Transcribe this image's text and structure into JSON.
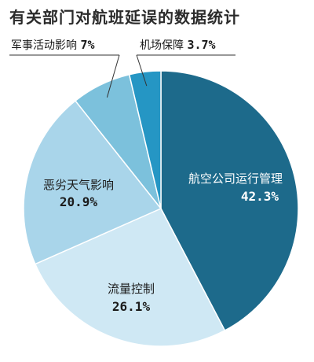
{
  "chart_data": {
    "type": "pie",
    "title": "有关部门对航班延误的数据统计",
    "slices": [
      {
        "label": "航空公司运行管理",
        "value": 42.3,
        "value_label": "42.3%",
        "color": "#1d6a8b"
      },
      {
        "label": "流量控制",
        "value": 26.1,
        "value_label": "26.1%",
        "color": "#cfe8f4"
      },
      {
        "label": "恶劣天气影响",
        "value": 20.9,
        "value_label": "20.9%",
        "color": "#a9d5ea"
      },
      {
        "label": "军事活动影响",
        "value": 7,
        "value_label": "7%",
        "color": "#7cc1dc"
      },
      {
        "label": "机场保障",
        "value": 3.7,
        "value_label": "3.7%",
        "color": "#2596c4"
      }
    ]
  }
}
